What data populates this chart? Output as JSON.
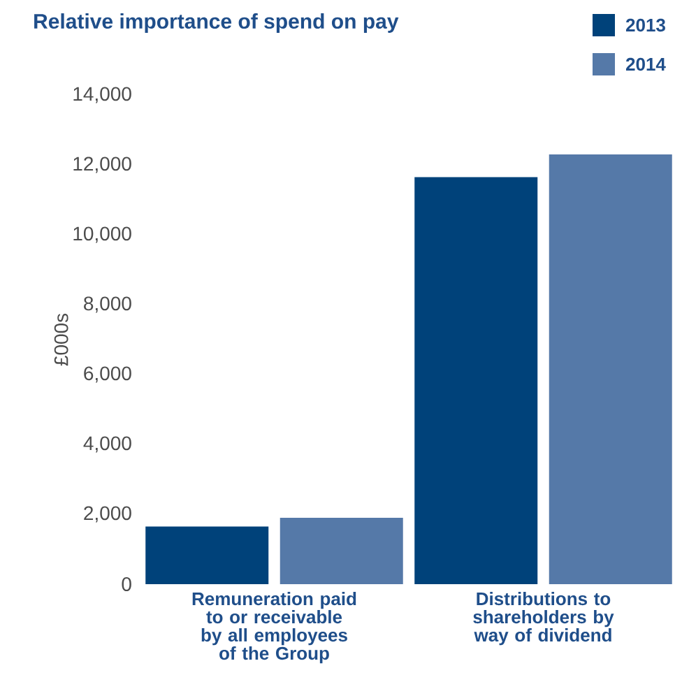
{
  "chart_data": {
    "type": "bar",
    "title": "Relative importance of spend on pay",
    "ylabel": "£000s",
    "categories": [
      "Remuneration paid to or receivable by all employees of the Group",
      "Distributions to shareholders by way of dividend"
    ],
    "series": [
      {
        "name": "2013",
        "color": "#00427a",
        "values": [
          1650,
          11650
        ]
      },
      {
        "name": "2014",
        "color": "#5579a8",
        "values": [
          1900,
          12300
        ]
      }
    ],
    "ylim": [
      0,
      14000
    ],
    "yticks": [
      {
        "value": 0,
        "label": "0"
      },
      {
        "value": 2000,
        "label": "2,000"
      },
      {
        "value": 4000,
        "label": "4,000"
      },
      {
        "value": 6000,
        "label": "6,000"
      },
      {
        "value": 8000,
        "label": "8,000"
      },
      {
        "value": 10000,
        "label": "10,000"
      },
      {
        "value": 12000,
        "label": "12,000"
      },
      {
        "value": 14000,
        "label": "14,000"
      }
    ],
    "legend": "top right",
    "grid": false
  }
}
